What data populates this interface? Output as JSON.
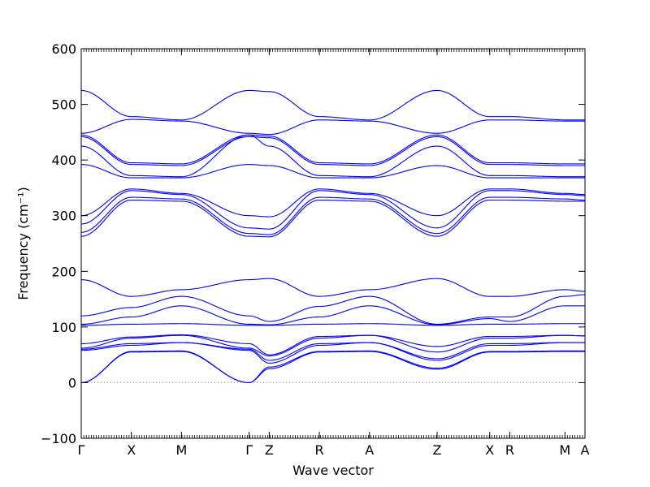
{
  "chart_data": {
    "type": "line",
    "title": "",
    "xlabel": "Wave vector",
    "ylabel": "Frequency (cm⁻¹)",
    "ylim": [
      -100,
      600
    ],
    "yticks": [
      -100,
      0,
      100,
      200,
      300,
      400,
      500,
      600
    ],
    "xlim": [
      0,
      10.05
    ],
    "qpoints": [
      {
        "label": "Γ",
        "x": 0
      },
      {
        "label": "X",
        "x": 1.0
      },
      {
        "label": "M",
        "x": 2.0
      },
      {
        "label": "Γ",
        "x": 3.35
      },
      {
        "label": "Z",
        "x": 3.75
      },
      {
        "label": "R",
        "x": 4.75
      },
      {
        "label": "A",
        "x": 5.75
      },
      {
        "label": "Z",
        "x": 7.1
      },
      {
        "label": "X",
        "x": 8.15
      },
      {
        "label": "R",
        "x": 8.55
      },
      {
        "label": "M",
        "x": 9.65
      },
      {
        "label": "A",
        "x": 10.05
      }
    ],
    "zero_line": {
      "y": 0,
      "style": "dotted",
      "color": "#808080"
    },
    "line_color": "#0000ff",
    "series": [
      {
        "values": [
          525,
          478,
          472,
          525,
          523,
          478,
          472,
          525,
          478,
          478,
          472,
          472
        ]
      },
      {
        "values": [
          448,
          473,
          470,
          448,
          446,
          472,
          470,
          448,
          472,
          472,
          470,
          470
        ]
      },
      {
        "values": [
          445,
          395,
          393,
          445,
          443,
          395,
          393,
          445,
          395,
          395,
          393,
          393
        ]
      },
      {
        "values": [
          442,
          392,
          390,
          442,
          440,
          392,
          390,
          442,
          392,
          392,
          390,
          390
        ]
      },
      {
        "values": [
          425,
          372,
          370,
          445,
          425,
          372,
          370,
          425,
          372,
          372,
          370,
          370
        ]
      },
      {
        "values": [
          392,
          368,
          368,
          392,
          390,
          368,
          368,
          390,
          368,
          368,
          368,
          368
        ]
      },
      {
        "values": [
          300,
          348,
          340,
          300,
          298,
          348,
          340,
          300,
          348,
          348,
          340,
          338
        ]
      },
      {
        "values": [
          285,
          345,
          338,
          278,
          276,
          345,
          338,
          278,
          345,
          345,
          338,
          336
        ]
      },
      {
        "values": [
          270,
          333,
          330,
          268,
          266,
          333,
          330,
          268,
          333,
          333,
          330,
          328
        ]
      },
      {
        "values": [
          263,
          328,
          326,
          263,
          262,
          328,
          326,
          263,
          328,
          328,
          326,
          326
        ]
      },
      {
        "values": [
          185,
          155,
          167,
          185,
          187,
          155,
          167,
          187,
          155,
          155,
          167,
          164
        ]
      },
      {
        "values": [
          120,
          135,
          155,
          120,
          110,
          137,
          155,
          105,
          118,
          118,
          155,
          158
        ]
      },
      {
        "values": [
          105,
          118,
          138,
          105,
          104,
          118,
          138,
          104,
          115,
          110,
          138,
          138
        ]
      },
      {
        "values": [
          103,
          105,
          106,
          103,
          103,
          105,
          106,
          103,
          105,
          105,
          106,
          106
        ]
      },
      {
        "values": [
          70,
          82,
          86,
          70,
          50,
          83,
          85,
          65,
          83,
          83,
          85,
          84
        ]
      },
      {
        "values": [
          62,
          80,
          85,
          62,
          48,
          80,
          85,
          55,
          80,
          80,
          85,
          84
        ]
      },
      {
        "values": [
          60,
          70,
          72,
          60,
          40,
          70,
          72,
          43,
          70,
          70,
          72,
          72
        ]
      },
      {
        "values": [
          58,
          67,
          72,
          58,
          35,
          67,
          72,
          40,
          67,
          67,
          72,
          72
        ]
      },
      {
        "values": [
          0,
          56,
          57,
          0,
          28,
          56,
          57,
          26,
          56,
          56,
          57,
          57
        ]
      },
      {
        "values": [
          0,
          55,
          56,
          0,
          25,
          55,
          56,
          24,
          55,
          55,
          56,
          56
        ]
      }
    ]
  }
}
